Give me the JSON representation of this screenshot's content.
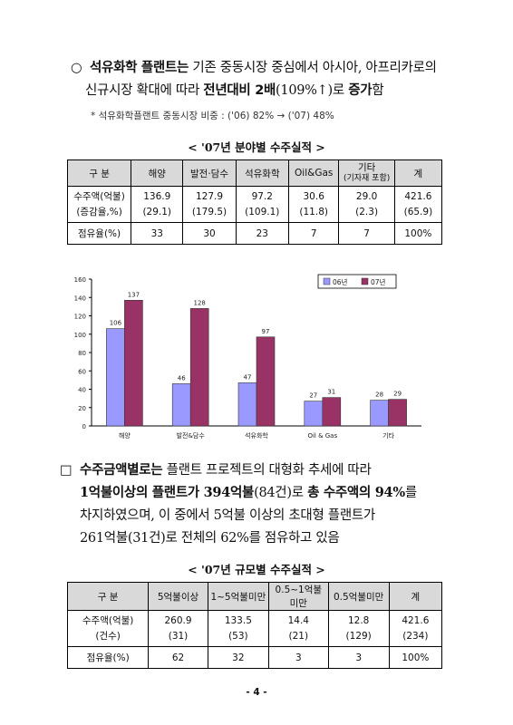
{
  "section1": {
    "bullet": "○",
    "line1_bold": "석유화학 플랜트는",
    "line1_rest": " 기존 중동시장 중심에서 아시아, 아프리카로의",
    "line2_a": "신규시장 확대에 따라 ",
    "line2_b": "전년대비 2배",
    "line2_c": "(109%↑)로 ",
    "line2_d": "증가",
    "line2_e": "함",
    "note": "* 석유화학플랜트 중동시장 비중 : ('06) 82% → ('07) 48%"
  },
  "table1": {
    "caption": "< '07년 분야별 수주실적 >",
    "headers": [
      "구 분",
      "해양",
      "발전·담수",
      "석유화학",
      "Oil&Gas",
      "기타",
      "(기자재 포함)",
      "계"
    ],
    "row1_label_a": "수주액(억불)",
    "row1_label_b": "(증감율,%)",
    "row1_values": [
      "136.9",
      "127.9",
      "97.2",
      "30.6",
      "29.0",
      "421.6"
    ],
    "row1_pct": [
      "(29.1)",
      "(179.5)",
      "(109.1)",
      "(11.8)",
      "(2.3)",
      "(65.9)"
    ],
    "row2_label": "점유율(%)",
    "row2_values": [
      "33",
      "30",
      "23",
      "7",
      "7",
      "100%"
    ]
  },
  "chart_data": {
    "type": "bar",
    "categories": [
      "해양",
      "발전&담수",
      "석유화학",
      "Oil & Gas",
      "기타"
    ],
    "series": [
      {
        "name": "06년",
        "values": [
          106,
          46,
          47,
          27,
          28
        ],
        "color": "#9999ff"
      },
      {
        "name": "07년",
        "values": [
          137,
          128,
          97,
          31,
          29
        ],
        "color": "#993366"
      }
    ],
    "yticks": [
      "0",
      "20",
      "40",
      "60",
      "80",
      "100",
      "120",
      "140",
      "160"
    ],
    "ylim": [
      0,
      160
    ],
    "legend": "top-right",
    "grid": false
  },
  "section2": {
    "bullet": "□",
    "l1_bold": "수주금액별로는",
    "l1_rest": " 플랜트 프로젝트의 대형화 추세에 따라",
    "l2_a": "1억불이상의 플랜트가 394억불",
    "l2_b": "(84건)로 ",
    "l2_c": "총 수주액의 94%",
    "l2_d": "를",
    "l3": "차지하였으며, 이 중에서 5억불 이상의 초대형 플랜트가",
    "l4": "261억불(31건)로 전체의 62%를 점유하고 있음"
  },
  "table2": {
    "caption": "< '07년 규모별 수주실적 >",
    "headers": [
      "구 분",
      "5억불이상",
      "1~5억불미만",
      "0.5~1억불미만",
      "0.5억불미만",
      "계"
    ],
    "row1_label_a": "수주액(억불)",
    "row1_label_b": "(건수)",
    "row1_values": [
      "260.9",
      "133.5",
      "14.4",
      "12.8",
      "421.6"
    ],
    "row1_counts": [
      "(31)",
      "(53)",
      "(21)",
      "(129)",
      "(234)"
    ],
    "row2_label": "점유율(%)",
    "row2_values": [
      "62",
      "32",
      "3",
      "3",
      "100%"
    ]
  },
  "page_number": "- 4 -"
}
